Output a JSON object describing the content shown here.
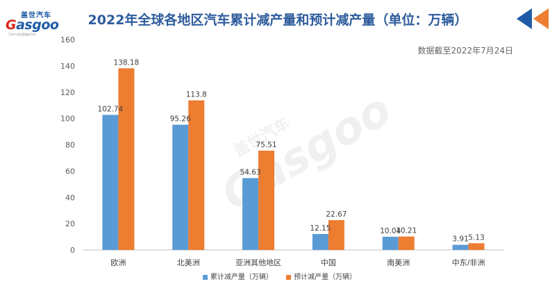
{
  "logo": {
    "cn": "盖世汽车",
    "en_g": "G",
    "en_rest": "asgoo",
    "tagline": "汽车产业信息服务平台"
  },
  "title": "2022年全球各地区汽车累计减产量和预计减产量（单位：万辆）",
  "note": "数据截至2022年7月24日",
  "watermark": {
    "cn": "盖世汽车",
    "en": "Gasgoo"
  },
  "colors": {
    "series1": "#5b9bd5",
    "series2": "#ed7d31",
    "title": "#2e5c9c",
    "accent_red": "#d9261c",
    "accent_blue": "#1f5aa6"
  },
  "chart_data": {
    "type": "bar",
    "title": "2022年全球各地区汽车累计减产量和预计减产量（单位：万辆）",
    "categories": [
      "欧洲",
      "北美洲",
      "亚洲其他地区",
      "中国",
      "南美洲",
      "中东/非洲"
    ],
    "series": [
      {
        "name": "累计减产量（万辆）",
        "values": [
          102.74,
          95.26,
          54.63,
          12.15,
          10.04,
          3.91
        ],
        "labels": [
          "102.74",
          "95.26",
          "54.63",
          "12.15",
          "10.04",
          "3.91"
        ]
      },
      {
        "name": "预计减产量（万辆）",
        "values": [
          138.18,
          113.8,
          75.51,
          22.67,
          10.21,
          5.13
        ],
        "labels": [
          "138.18",
          "113.8",
          "75.51",
          "22.67",
          "10.21",
          "5.13"
        ]
      }
    ],
    "ylim": [
      0,
      160
    ],
    "yticks": [
      "0",
      "20",
      "40",
      "60",
      "80",
      "100",
      "120",
      "140",
      "160"
    ],
    "grid": false,
    "legend_position": "bottom"
  }
}
